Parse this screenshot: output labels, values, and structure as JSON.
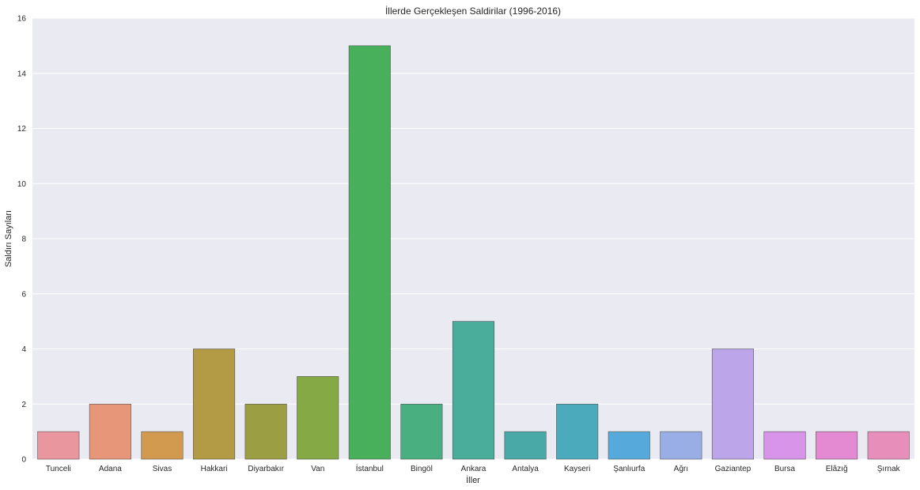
{
  "chart_data": {
    "type": "bar",
    "title": "İllerde Gerçekleşen Saldirilar (1996-2016)",
    "xlabel": "İller",
    "ylabel": "Saldırı Sayıları",
    "categories": [
      "Tunceli",
      "Adana",
      "Sivas",
      "Hakkari",
      "Diyarbakır",
      "Van",
      "İstanbul",
      "Bingöl",
      "Ankara",
      "Antalya",
      "Kayseri",
      "Şanlıurfa",
      "Ağrı",
      "Gaziantep",
      "Bursa",
      "Elâzığ",
      "Şırnak"
    ],
    "values": [
      1,
      2,
      1,
      4,
      2,
      3,
      15,
      2,
      5,
      1,
      2,
      1,
      1,
      4,
      1,
      1,
      1
    ],
    "ylim": [
      0,
      16
    ],
    "yticks": [
      0,
      2,
      4,
      6,
      8,
      10,
      12,
      14,
      16
    ],
    "ytick_labels": [
      "0",
      "2",
      "4",
      "6",
      "8",
      "10",
      "12",
      "14",
      "16"
    ],
    "grid": true,
    "colors": [
      "#ea969e",
      "#e8967a",
      "#d19a4e",
      "#b39a44",
      "#9c9e44",
      "#85a944",
      "#48b05b",
      "#49ae80",
      "#4aac9b",
      "#49a9a6",
      "#4caabd",
      "#55aadb",
      "#9aaee6",
      "#bca5e8",
      "#d894e8",
      "#e48ad3",
      "#e78fba"
    ],
    "background": "#eaeaf2",
    "grid_color": "#ffffff"
  }
}
